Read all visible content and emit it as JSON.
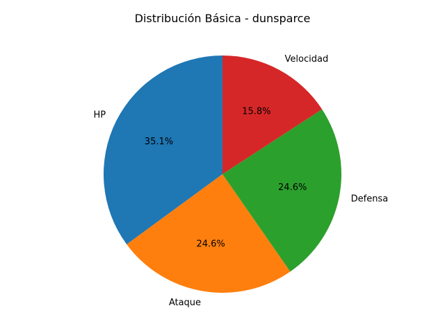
{
  "chart_data": {
    "type": "pie",
    "title": "Distribución Básica - dunsparce",
    "categories": [
      "HP",
      "Ataque",
      "Defensa",
      "Velocidad"
    ],
    "values": [
      100,
      70,
      70,
      45
    ],
    "percent_labels": [
      "35.1%",
      "24.6%",
      "24.6%",
      "15.8%"
    ],
    "colors": [
      "#1f77b4",
      "#ff7f0e",
      "#2ca02c",
      "#d62728"
    ],
    "start_angle": 90,
    "direction": "counterclockwise",
    "legend": "none"
  }
}
